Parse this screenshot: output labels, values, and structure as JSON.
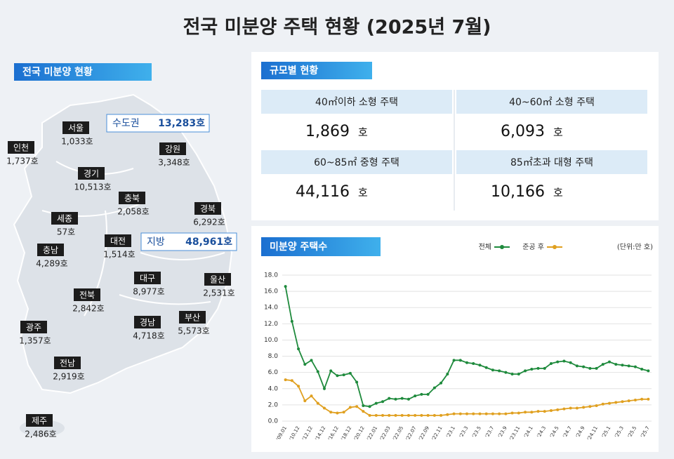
{
  "title": "전국 미분양 주택 현황  (2025년 7월)",
  "map": {
    "header": "전국 미분양 현황",
    "regions": [
      {
        "name": "서울",
        "value": "1,033호"
      },
      {
        "name": "인천",
        "value": "1,737호"
      },
      {
        "name": "경기",
        "value": "10,513호"
      },
      {
        "name": "강원",
        "value": "3,348호"
      },
      {
        "name": "충북",
        "value": "2,058호"
      },
      {
        "name": "경북",
        "value": "6,292호"
      },
      {
        "name": "세종",
        "value": "57호"
      },
      {
        "name": "대전",
        "value": "1,514호"
      },
      {
        "name": "충남",
        "value": "4,289호"
      },
      {
        "name": "대구",
        "value": "8,977호"
      },
      {
        "name": "울산",
        "value": "2,531호"
      },
      {
        "name": "전북",
        "value": "2,842호"
      },
      {
        "name": "부산",
        "value": "5,573호"
      },
      {
        "name": "경남",
        "value": "4,718호"
      },
      {
        "name": "광주",
        "value": "1,357호"
      },
      {
        "name": "전남",
        "value": "2,919호"
      },
      {
        "name": "제주",
        "value": "2,486호"
      }
    ],
    "metro": [
      {
        "name": "수도권",
        "value": "13,283호"
      },
      {
        "name": "지방",
        "value": "48,961호"
      }
    ]
  },
  "size_table": {
    "header": "규모별 현황",
    "unit": "호",
    "cells": [
      {
        "label": "40㎡이하 소형 주택",
        "value": "1,869"
      },
      {
        "label": "40~60㎡ 소형 주택",
        "value": "6,093"
      },
      {
        "label": "60~85㎡ 중형 주택",
        "value": "44,116"
      },
      {
        "label": "85㎡초과 대형 주택",
        "value": "10,166"
      }
    ]
  },
  "chart_data": {
    "type": "line",
    "title": "미분양 주택수",
    "unit_note": "(단위:만 호)",
    "categories": [
      "'09.01",
      null,
      "'10.12",
      null,
      "'12.12",
      null,
      "'14.12",
      null,
      "'16.12",
      null,
      "'18.12",
      null,
      "'20.12",
      null,
      "'22.01",
      null,
      "'22.03",
      null,
      "'22.05",
      null,
      "'22.07",
      null,
      "'22.09",
      null,
      "'22.11",
      null,
      "'23.1",
      null,
      "'23.3",
      null,
      "'23.5",
      null,
      "'23.7",
      null,
      "'23.9",
      null,
      "'23.11",
      null,
      "'24.1",
      null,
      "'24.3",
      null,
      "'24.5",
      null,
      "'24.7",
      null,
      "'24.9",
      null,
      "'24.11",
      null,
      "'25.1",
      null,
      "'25.3",
      null,
      "'25.5",
      null,
      "'25.7"
    ],
    "series": [
      {
        "name": "전체",
        "color": "#1e8a3c",
        "values": [
          16.6,
          12.3,
          8.9,
          7.0,
          7.5,
          6.1,
          4.0,
          6.2,
          5.6,
          5.7,
          5.9,
          4.8,
          1.9,
          1.8,
          2.2,
          2.4,
          2.8,
          2.7,
          2.8,
          2.7,
          3.1,
          3.3,
          3.3,
          4.1,
          4.7,
          5.8,
          7.5,
          7.5,
          7.2,
          7.1,
          6.9,
          6.6,
          6.3,
          6.2,
          6.0,
          5.8,
          5.8,
          6.2,
          6.4,
          6.5,
          6.5,
          7.1,
          7.3,
          7.4,
          7.2,
          6.8,
          6.7,
          6.5,
          6.5,
          7.0,
          7.3,
          7.0,
          6.9,
          6.8,
          6.7,
          6.4,
          6.2
        ]
      },
      {
        "name": "준공 후",
        "color": "#e0a020",
        "values": [
          5.1,
          5.0,
          4.3,
          2.5,
          3.1,
          2.2,
          1.6,
          1.1,
          1.0,
          1.1,
          1.7,
          1.8,
          1.2,
          0.7,
          0.7,
          0.7,
          0.7,
          0.7,
          0.7,
          0.7,
          0.7,
          0.7,
          0.7,
          0.7,
          0.7,
          0.8,
          0.9,
          0.9,
          0.9,
          0.9,
          0.9,
          0.9,
          0.9,
          0.9,
          0.9,
          1.0,
          1.0,
          1.1,
          1.1,
          1.2,
          1.2,
          1.3,
          1.4,
          1.5,
          1.6,
          1.6,
          1.7,
          1.8,
          1.9,
          2.1,
          2.2,
          2.3,
          2.4,
          2.5,
          2.6,
          2.7,
          2.7
        ]
      }
    ],
    "ylim": [
      0,
      18
    ],
    "yticks": [
      {
        "value": 0,
        "label": "0.0"
      },
      {
        "value": 2,
        "label": "2.0"
      },
      {
        "value": 4,
        "label": "4.0"
      },
      {
        "value": 6,
        "label": "6.0"
      },
      {
        "value": 8,
        "label": "8.0"
      },
      {
        "value": 10,
        "label": "10.0"
      },
      {
        "value": 12,
        "label": "12.0"
      },
      {
        "value": 14,
        "label": "14.0"
      },
      {
        "value": 16,
        "label": "16.0"
      },
      {
        "value": 18,
        "label": "18.0"
      }
    ],
    "grid": true
  }
}
